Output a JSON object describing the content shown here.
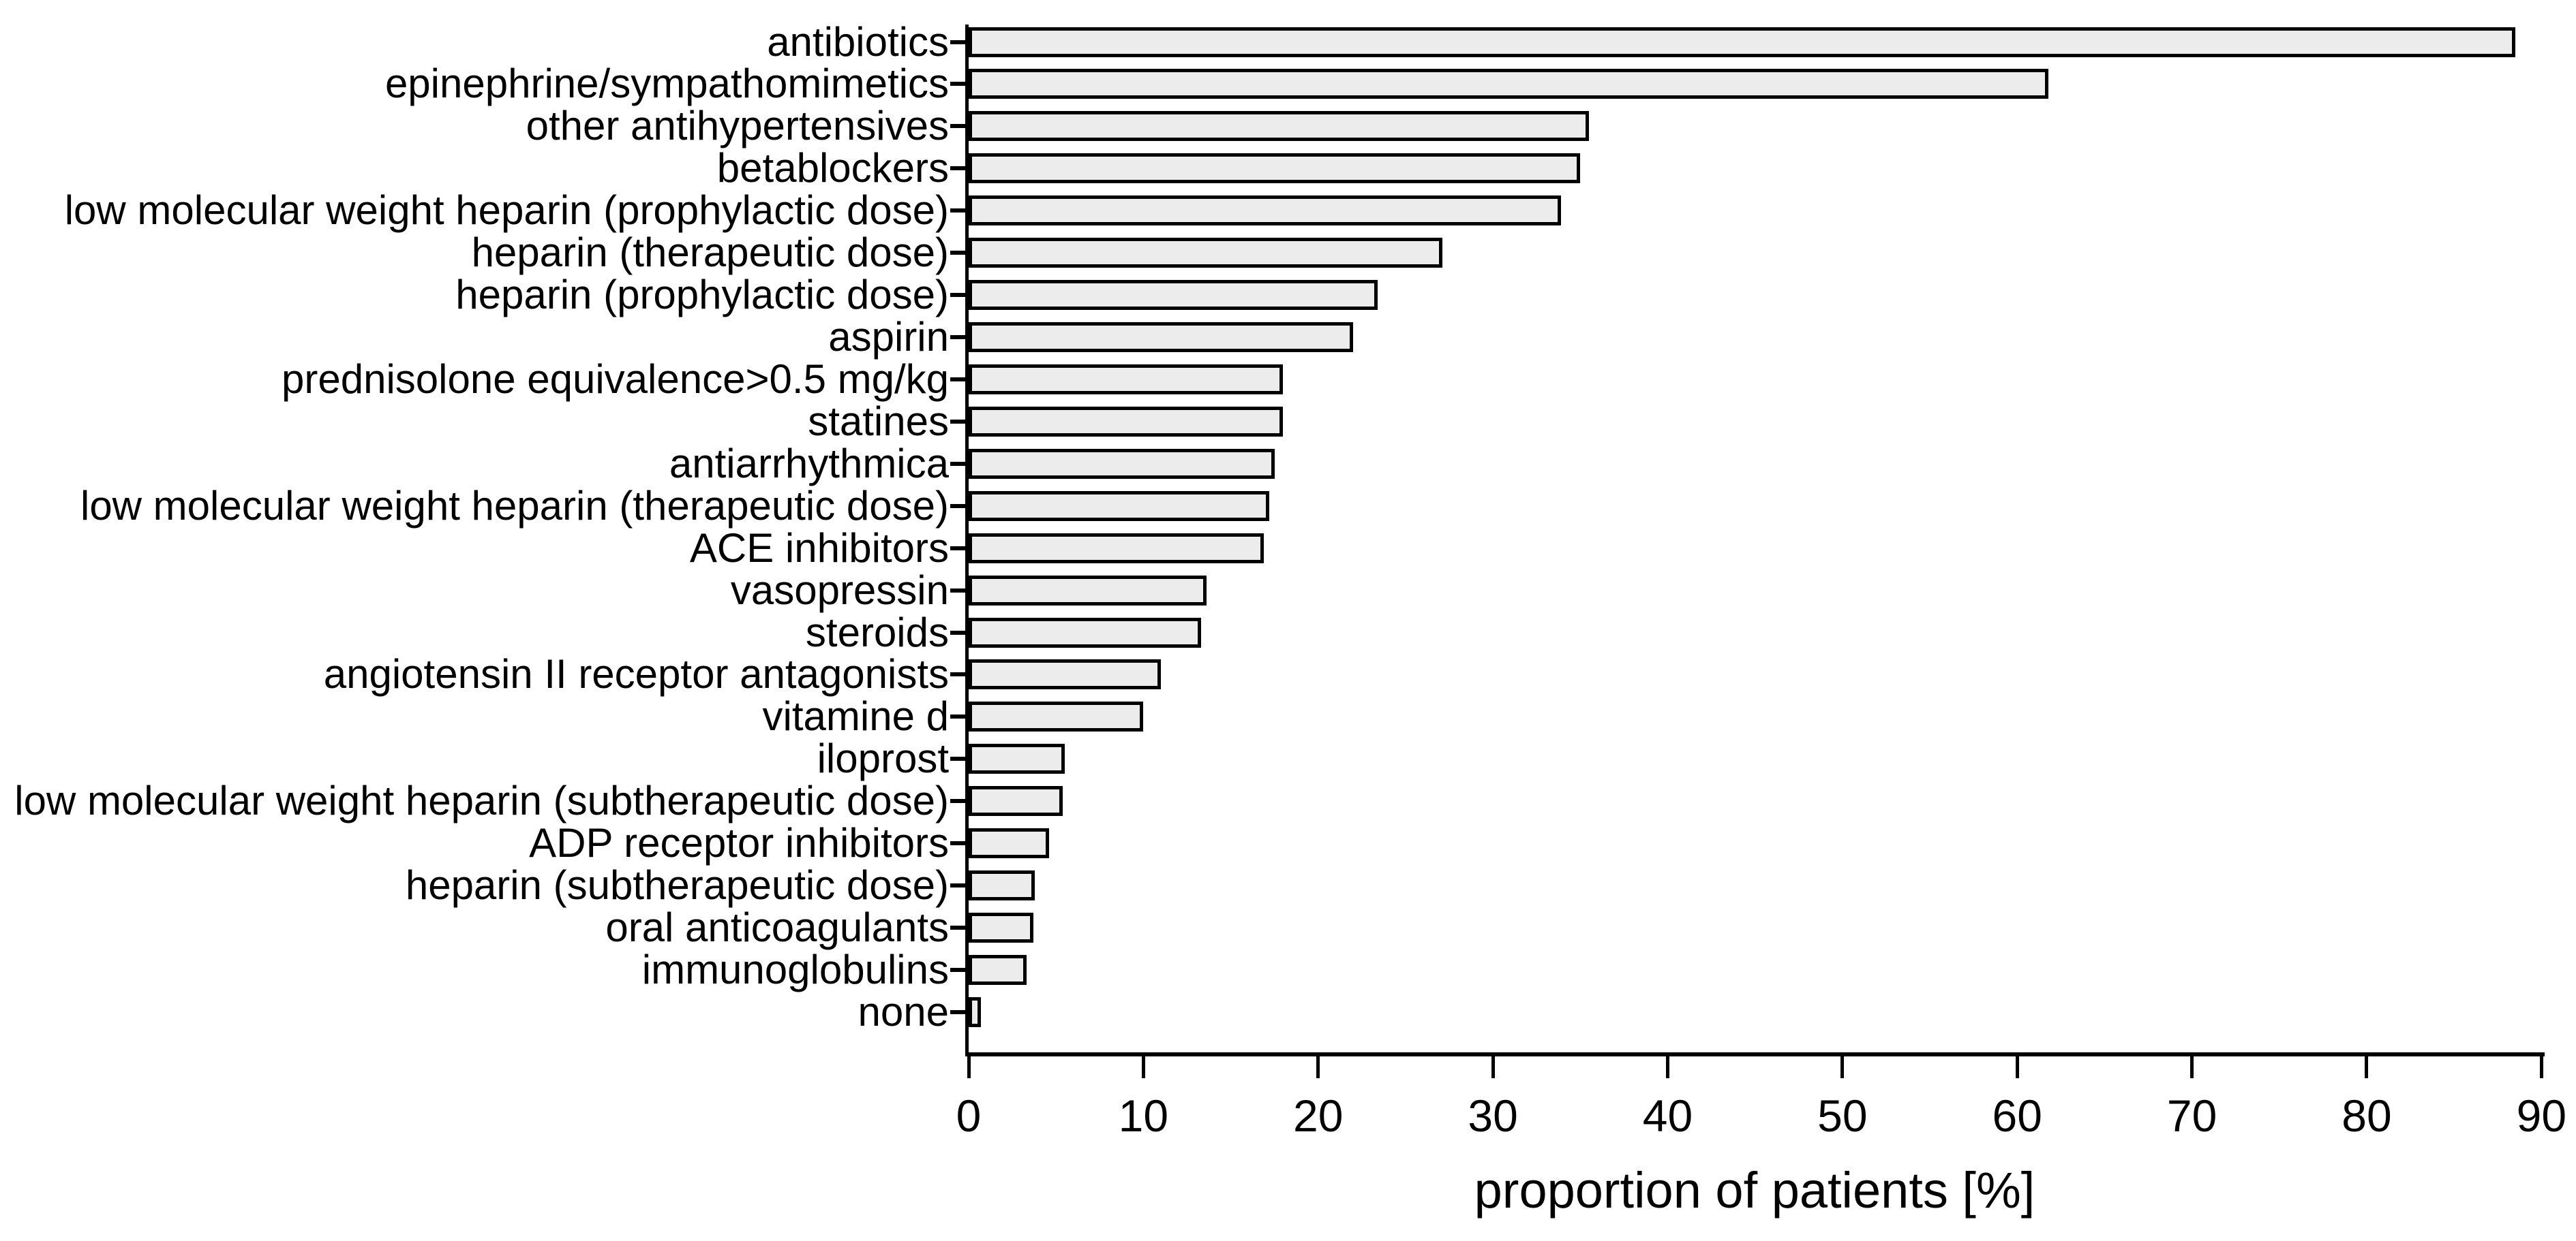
{
  "chart_data": {
    "type": "bar",
    "orientation": "horizontal",
    "title": "",
    "xlabel": "proportion of patients [%]",
    "ylabel": "",
    "xlim": [
      0,
      90
    ],
    "xticks": [
      0,
      10,
      20,
      30,
      40,
      50,
      60,
      70,
      80,
      90
    ],
    "grid": false,
    "legend": null,
    "bar_fill_color": "#ececec",
    "bar_border_color": "#000000",
    "text_color": "#000000",
    "background_color": "#ffffff",
    "categories": [
      "antibiotics",
      "epinephrine/sympathomimetics",
      "other antihypertensives",
      "betablockers",
      "low molecular weight heparin (prophylactic dose)",
      "heparin (therapeutic dose)",
      "heparin (prophylactic dose)",
      "aspirin",
      "prednisolone equivalence>0.5 mg/kg",
      "statines",
      "antiarrhythmica",
      "low molecular weight heparin (therapeutic dose)",
      "ACE inhibitors",
      "vasopressin",
      "steroids",
      "angiotensin II receptor antagonists",
      "vitamine d",
      "iloprost",
      "low molecular weight heparin (subtherapeutic dose)",
      "ADP receptor inhibitors",
      "heparin (subtherapeutic dose)",
      "oral anticoagulants",
      "immunoglobulins",
      "none"
    ],
    "values": [
      88.5,
      61.8,
      35.5,
      35.0,
      33.9,
      27.1,
      23.4,
      22.0,
      18.0,
      18.0,
      17.5,
      17.2,
      16.9,
      13.6,
      13.3,
      11.0,
      10.0,
      5.5,
      5.4,
      4.6,
      3.8,
      3.7,
      3.3,
      0.7
    ]
  }
}
